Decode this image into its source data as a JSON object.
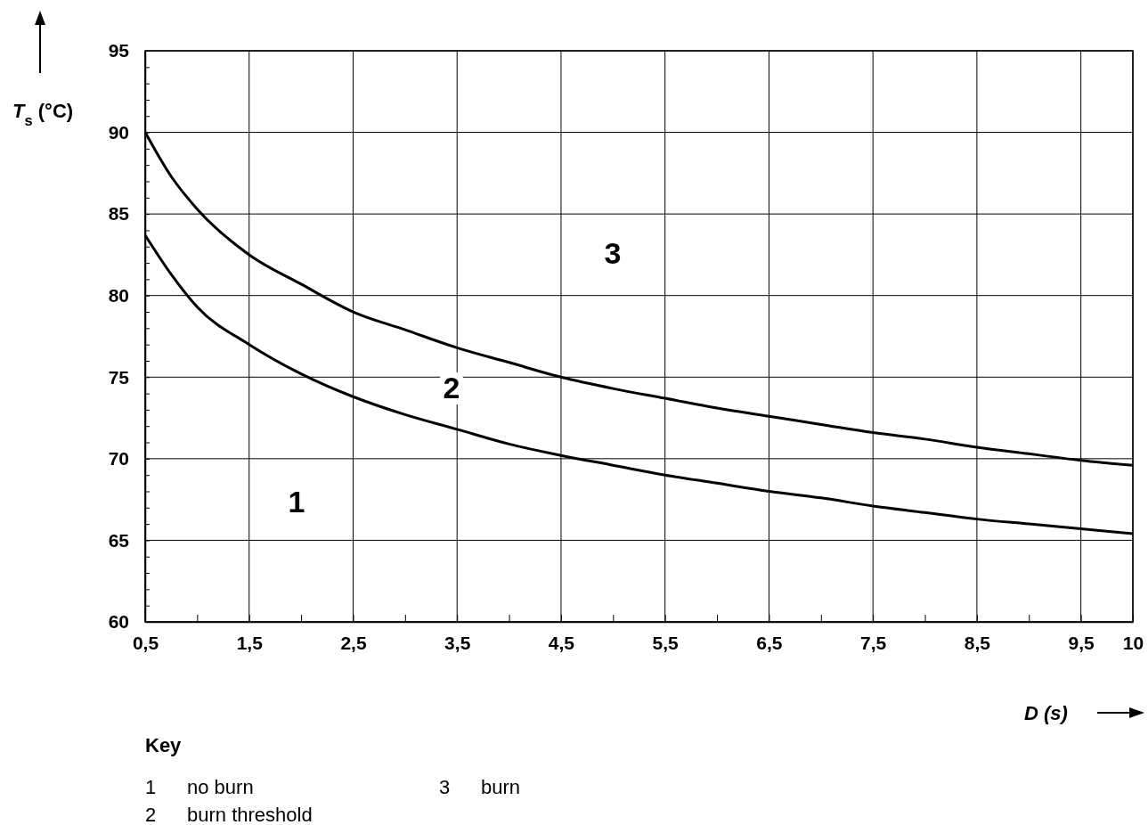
{
  "chart_data": {
    "type": "line",
    "xlabel": "D (s)",
    "ylabel": "T$_{s}$ (°C)",
    "x": [
      0.5,
      0.75,
      1,
      1.5,
      2,
      2.5,
      3,
      3.5,
      4,
      4.5,
      5,
      5.5,
      6,
      6.5,
      7,
      7.5,
      8,
      8.5,
      9,
      9.5,
      10
    ],
    "series": [
      {
        "color": "#000000",
        "values": [
          90,
          87.3,
          85.3,
          82.5,
          80.7,
          79.0,
          77.9,
          76.8,
          75.9,
          75.0,
          74.3,
          73.7,
          73.1,
          72.6,
          72.1,
          71.6,
          71.2,
          70.7,
          70.3,
          69.9,
          69.6
        ]
      },
      {
        "color": "#000000",
        "values": [
          83.7,
          81.3,
          79.3,
          77.0,
          75.2,
          73.8,
          72.7,
          71.8,
          70.9,
          70.2,
          69.6,
          69.0,
          68.5,
          68.0,
          67.6,
          67.1,
          66.7,
          66.3,
          66.0,
          65.7,
          65.4
        ]
      }
    ],
    "xlim": [
      0.5,
      10
    ],
    "ylim": [
      60,
      95
    ],
    "xticks": [
      {
        "value": 0.5,
        "label": "0,5"
      },
      {
        "value": 1,
        "label": null
      },
      {
        "value": 1.5,
        "label": "1,5"
      },
      {
        "value": 2,
        "label": null
      },
      {
        "value": 2.5,
        "label": "2,5"
      },
      {
        "value": 3,
        "label": null
      },
      {
        "value": 3.5,
        "label": "3,5"
      },
      {
        "value": 4,
        "label": null
      },
      {
        "value": 4.5,
        "label": "4,5"
      },
      {
        "value": 5,
        "label": null
      },
      {
        "value": 5.5,
        "label": "5,5"
      },
      {
        "value": 6,
        "label": null
      },
      {
        "value": 6.5,
        "label": "6,5"
      },
      {
        "value": 7,
        "label": null
      },
      {
        "value": 7.5,
        "label": "7,5"
      },
      {
        "value": 8,
        "label": null
      },
      {
        "value": 8.5,
        "label": "8,5"
      },
      {
        "value": 9,
        "label": null
      },
      {
        "value": 9.5,
        "label": "9,5"
      },
      {
        "value": 10,
        "label": "10"
      }
    ],
    "yticks": [
      60,
      {
        "value": 61,
        "label": null
      },
      {
        "value": 62,
        "label": null
      },
      {
        "value": 63,
        "label": null
      },
      {
        "value": 64,
        "label": null
      },
      65,
      {
        "value": 66,
        "label": null
      },
      {
        "value": 67,
        "label": null
      },
      {
        "value": 68,
        "label": null
      },
      {
        "value": 69,
        "label": null
      },
      70,
      {
        "value": 71,
        "label": null
      },
      {
        "value": 72,
        "label": null
      },
      {
        "value": 73,
        "label": null
      },
      {
        "value": 74,
        "label": null
      },
      75,
      {
        "value": 76,
        "label": null
      },
      {
        "value": 77,
        "label": null
      },
      {
        "value": 78,
        "label": null
      },
      {
        "value": 79,
        "label": null
      },
      80,
      {
        "value": 81,
        "label": null
      },
      {
        "value": 82,
        "label": null
      },
      {
        "value": 83,
        "label": null
      },
      {
        "value": 84,
        "label": null
      },
      85,
      {
        "value": 86,
        "label": null
      },
      {
        "value": 87,
        "label": null
      },
      {
        "value": 88,
        "label": null
      },
      {
        "value": 89,
        "label": null
      },
      90,
      {
        "value": 91,
        "label": null
      },
      {
        "value": 92,
        "label": null
      },
      {
        "value": 93,
        "label": null
      },
      {
        "value": 94,
        "label": null
      },
      95
    ],
    "grid": true,
    "line_style": "solid",
    "marker": "none",
    "annotations": [
      "1",
      "2",
      "3",
      "Key",
      "1 no burn",
      "2 burn threshold",
      "3 burn"
    ]
  }
}
